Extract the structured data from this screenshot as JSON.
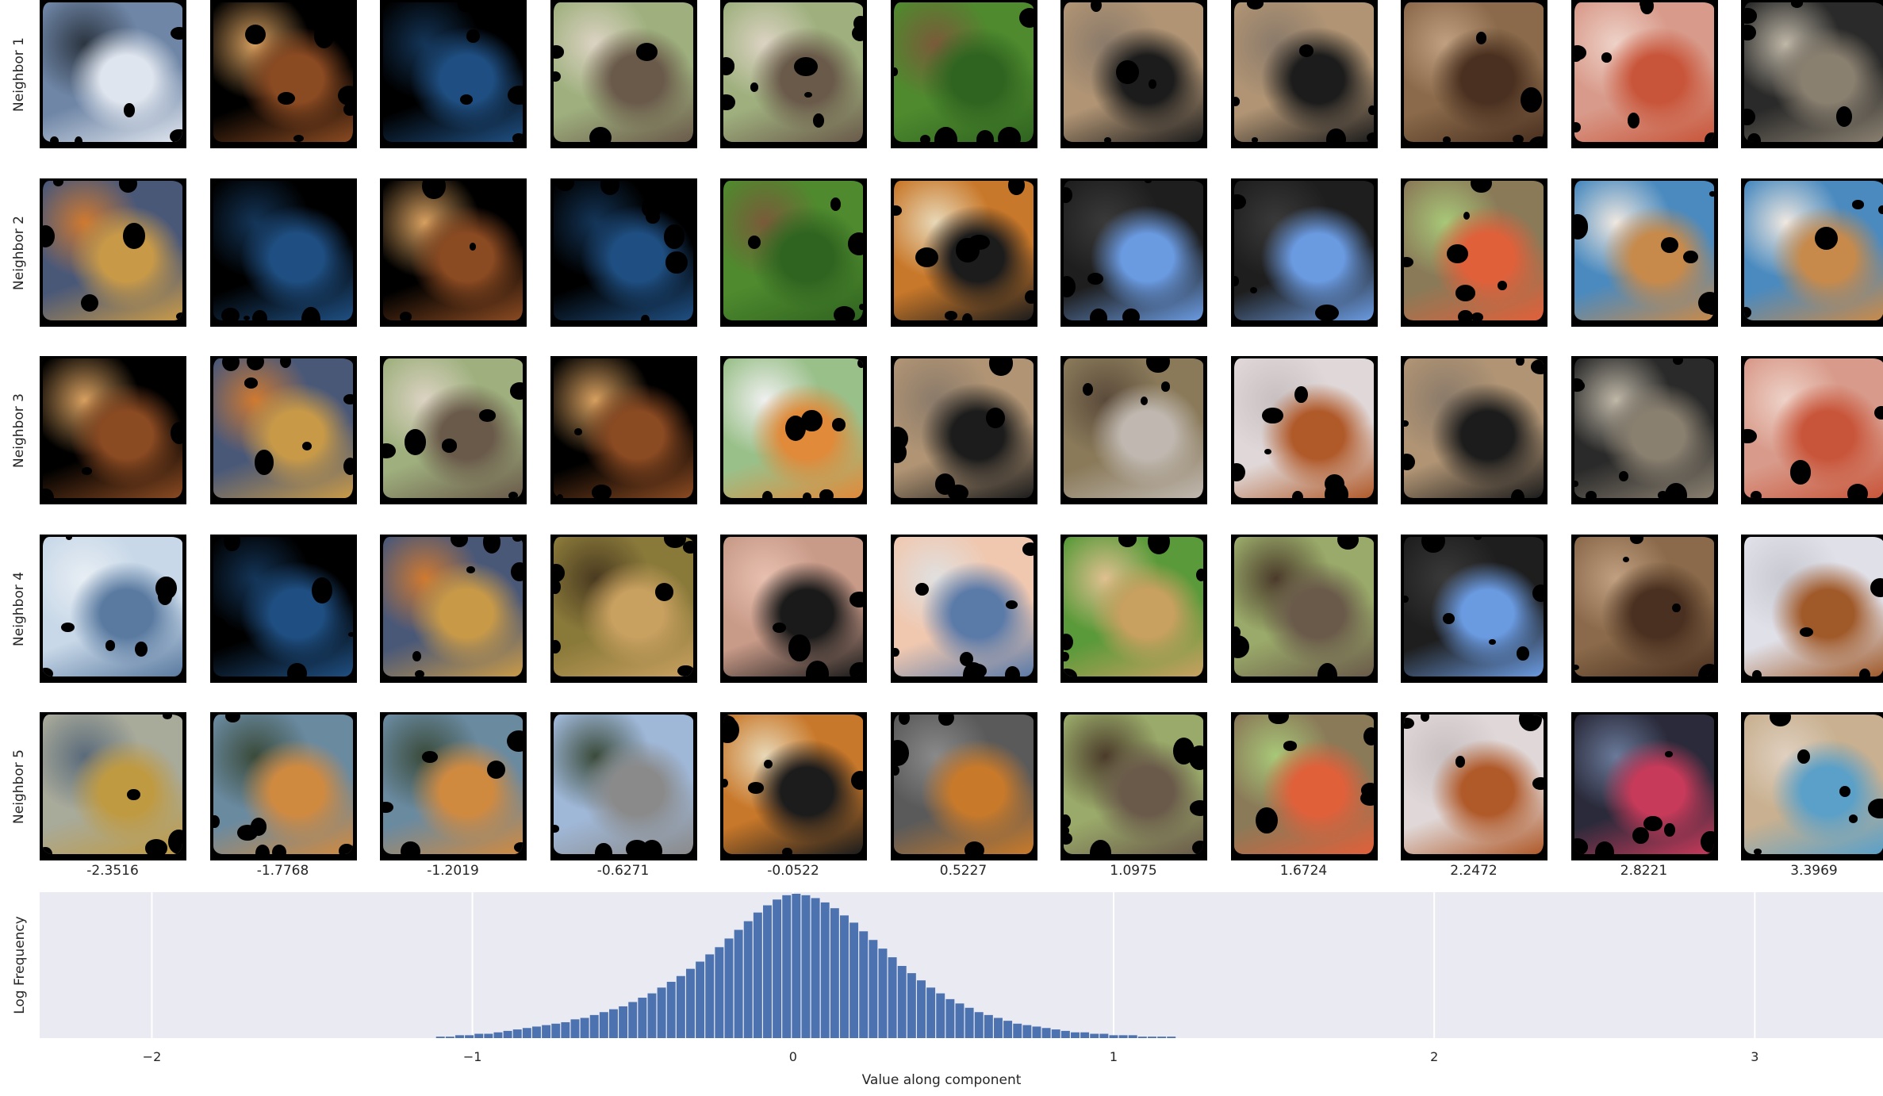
{
  "row_labels": [
    "Neighbor 1",
    "Neighbor 2",
    "Neighbor 3",
    "Neighbor 4",
    "Neighbor 5"
  ],
  "column_values": [
    "-2.3516",
    "-1.7768",
    "-1.2019",
    "-0.6271",
    "-0.0522",
    "0.5227",
    "1.0975",
    "1.6724",
    "2.2472",
    "2.8221",
    "3.3969"
  ],
  "thumbnails": [
    [
      "clouds-sky",
      "saxophone",
      "sky-blue",
      "bird",
      "bird",
      "mallard-ducks",
      "dog-on-sand",
      "dog-on-sand",
      "brown-dog",
      "pug-puppies",
      "dark-dog"
    ],
    [
      "padlock-chain",
      "sky-blue",
      "saxophone",
      "sky-blue",
      "mallard-ducks",
      "tiger",
      "black-dog",
      "black-dog",
      "tabby-cat",
      "corgi-blanket",
      "corgi-blanket"
    ],
    [
      "saxophone",
      "padlock-chain",
      "bird",
      "saxophone",
      "finch",
      "dog-on-sand",
      "grey-dog-leaves",
      "white-brown-dog",
      "dog-on-sand",
      "dark-dog",
      "pug-puppies"
    ],
    [
      "airplane-sky",
      "sky-blue",
      "padlock-chain",
      "sparrow-ground",
      "hand-worm",
      "smiling-man",
      "golden-dog-grass",
      "shepherd-yard",
      "black-dog",
      "brown-dog",
      "puppy-bath"
    ],
    [
      "airplane-field",
      "bridge-sunset",
      "bridge-sunset",
      "city-monument",
      "tiger",
      "lizard-gravel",
      "shepherd-yard",
      "tabby-cat",
      "white-brown-dog",
      "black-puppy",
      "pug-blanket"
    ]
  ],
  "chart_data": {
    "type": "bar",
    "ylabel": "Log Frequency",
    "xlabel": "Value along component",
    "xlim": [
      -2.35,
      3.4
    ],
    "xticks": [
      -2,
      -1,
      0,
      1,
      2,
      3
    ],
    "xtick_labels": [
      "−2",
      "−1",
      "0",
      "1",
      "2",
      "3"
    ],
    "grid": true,
    "bins": [
      -1.1,
      -1.07,
      -1.04,
      -1.01,
      -0.98,
      -0.95,
      -0.92,
      -0.89,
      -0.86,
      -0.83,
      -0.8,
      -0.77,
      -0.74,
      -0.71,
      -0.68,
      -0.65,
      -0.62,
      -0.59,
      -0.56,
      -0.53,
      -0.5,
      -0.47,
      -0.44,
      -0.41,
      -0.38,
      -0.35,
      -0.32,
      -0.29,
      -0.26,
      -0.23,
      -0.2,
      -0.17,
      -0.14,
      -0.11,
      -0.08,
      -0.05,
      -0.02,
      0.01,
      0.04,
      0.07,
      0.1,
      0.13,
      0.16,
      0.19,
      0.22,
      0.25,
      0.28,
      0.31,
      0.34,
      0.37,
      0.4,
      0.43,
      0.46,
      0.49,
      0.52,
      0.55,
      0.58,
      0.61,
      0.64,
      0.67,
      0.7,
      0.73,
      0.76,
      0.79,
      0.82,
      0.85,
      0.88,
      0.91,
      0.94,
      0.97,
      1.0,
      1.03,
      1.06,
      1.09,
      1.12,
      1.15,
      1.18
    ],
    "values": [
      0.01,
      0.01,
      0.02,
      0.02,
      0.03,
      0.03,
      0.04,
      0.05,
      0.06,
      0.07,
      0.08,
      0.09,
      0.1,
      0.11,
      0.13,
      0.14,
      0.16,
      0.18,
      0.2,
      0.22,
      0.25,
      0.28,
      0.31,
      0.35,
      0.39,
      0.43,
      0.48,
      0.53,
      0.58,
      0.63,
      0.69,
      0.75,
      0.81,
      0.87,
      0.92,
      0.96,
      0.99,
      1.0,
      0.99,
      0.97,
      0.94,
      0.9,
      0.85,
      0.8,
      0.74,
      0.68,
      0.62,
      0.56,
      0.5,
      0.45,
      0.4,
      0.35,
      0.31,
      0.27,
      0.24,
      0.21,
      0.18,
      0.16,
      0.14,
      0.12,
      0.1,
      0.09,
      0.08,
      0.07,
      0.06,
      0.05,
      0.04,
      0.04,
      0.03,
      0.03,
      0.02,
      0.02,
      0.02,
      0.01,
      0.01,
      0.01,
      0.01
    ],
    "bar_color": "#4c72b0",
    "background": "#eaeaf2"
  },
  "colors": {
    "clouds-sky": [
      "#6f86a6",
      "#dfe5ee",
      "#2b3440"
    ],
    "saxophone": [
      "#000000",
      "#8a4a22",
      "#d8a060"
    ],
    "sky-blue": [
      "#000000",
      "#1f4f82",
      "#143558"
    ],
    "bird": [
      "#9fb07e",
      "#6a5a4a",
      "#dcd3c3"
    ],
    "mallard-ducks": [
      "#4f8a2e",
      "#2f6420",
      "#7a5a3a"
    ],
    "dog-on-sand": [
      "#b09474",
      "#1c1c1c",
      "#8a7a6a"
    ],
    "brown-dog": [
      "#8a6a4a",
      "#4a3020",
      "#c0a080"
    ],
    "pug-puppies": [
      "#d89a8a",
      "#c8553a",
      "#eed2c8"
    ],
    "dark-dog": [
      "#2a2a2a",
      "#8a8070",
      "#c0b8a8"
    ],
    "padlock-chain": [
      "#4a5878",
      "#c89a48",
      "#d07a30"
    ],
    "tiger": [
      "#c8782a",
      "#1c1c1c",
      "#e8d8b8"
    ],
    "black-dog": [
      "#1e1e1e",
      "#6a9ae0",
      "#3a3a3a"
    ],
    "tabby-cat": [
      "#8a7a58",
      "#e0603a",
      "#a8c878"
    ],
    "corgi-blanket": [
      "#4a8abf",
      "#c88a4a",
      "#f0e8e0"
    ],
    "finch": [
      "#9ac08a",
      "#e08a3a",
      "#f0f0f0"
    ],
    "grey-dog-leaves": [
      "#8a7a5a",
      "#c0b8b0",
      "#5a4a3a"
    ],
    "white-brown-dog": [
      "#e0d8d8",
      "#b05a2a",
      "#c8c0c0"
    ],
    "airplane-sky": [
      "#c8d8e8",
      "#5a7aa0",
      "#e8eef4"
    ],
    "sparrow-ground": [
      "#8a7a3a",
      "#c8a060",
      "#4a3a20"
    ],
    "hand-worm": [
      "#c89a88",
      "#1a1a1a",
      "#e8c0b0"
    ],
    "smiling-man": [
      "#f0c8b0",
      "#5a7aa8",
      "#e0e0e0"
    ],
    "golden-dog-grass": [
      "#5a9a3a",
      "#c8a060",
      "#e0c090"
    ],
    "shepherd-yard": [
      "#9aaa6a",
      "#6a5a4a",
      "#4a3a2a"
    ],
    "puppy-bath": [
      "#e0e0e8",
      "#a05a2a",
      "#c8c8d0"
    ],
    "airplane-field": [
      "#a8aa9a",
      "#c09a40",
      "#5a6a7a"
    ],
    "bridge-sunset": [
      "#6a8aa0",
      "#d08a40",
      "#3a4a3a"
    ],
    "city-monument": [
      "#a0b8d8",
      "#8a8a8a",
      "#3a4a3a"
    ],
    "lizard-gravel": [
      "#5a5a5a",
      "#c87a2a",
      "#8a8a8a"
    ],
    "black-puppy": [
      "#2a2a3a",
      "#c83a5a",
      "#6a7a9a"
    ],
    "pug-blanket": [
      "#c8b090",
      "#5aa0c8",
      "#e0d0c0"
    ]
  }
}
